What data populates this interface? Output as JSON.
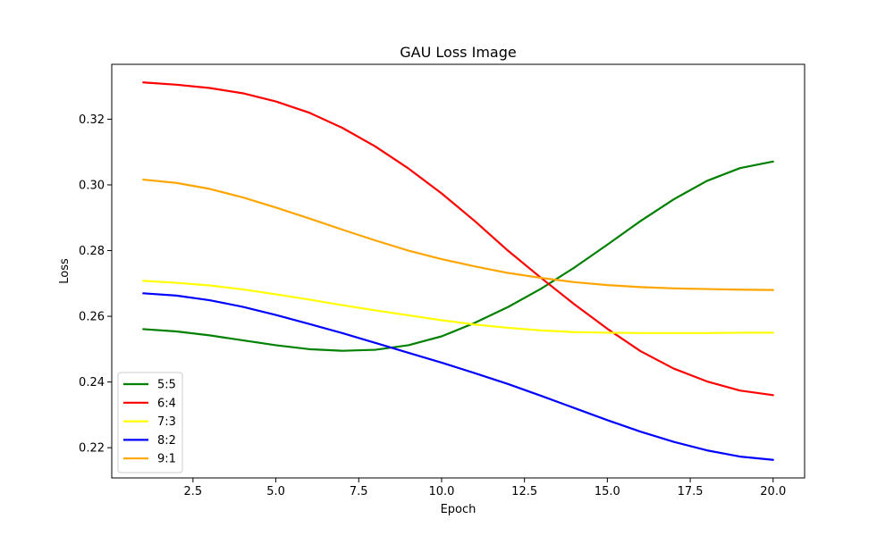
{
  "chart_data": {
    "type": "line",
    "title": "GAU Loss Image",
    "xlabel": "Epoch",
    "ylabel": "Loss",
    "xlim": [
      0.05,
      20.95
    ],
    "ylim": [
      0.2108,
      0.3367
    ],
    "xticks": [
      2.5,
      5.0,
      7.5,
      10.0,
      12.5,
      15.0,
      17.5,
      20.0
    ],
    "xtick_labels": [
      "2.5",
      "5.0",
      "7.5",
      "10.0",
      "12.5",
      "15.0",
      "17.5",
      "20.0"
    ],
    "yticks": [
      0.22,
      0.24,
      0.26,
      0.28,
      0.3,
      0.32
    ],
    "ytick_labels": [
      "0.22",
      "0.24",
      "0.26",
      "0.28",
      "0.30",
      "0.32"
    ],
    "grid": false,
    "legend_position": "lower-left",
    "x": [
      1,
      2,
      3,
      4,
      5,
      6,
      7,
      8,
      9,
      10,
      11,
      12,
      13,
      14,
      15,
      16,
      17,
      18,
      19,
      20
    ],
    "series": [
      {
        "name": "5:5",
        "color": "#008000",
        "values": [
          0.2561,
          0.2554,
          0.2542,
          0.2527,
          0.2512,
          0.25,
          0.2495,
          0.2498,
          0.2512,
          0.2539,
          0.258,
          0.2628,
          0.2684,
          0.2748,
          0.2818,
          0.289,
          0.2956,
          0.3012,
          0.3051,
          0.3071
        ]
      },
      {
        "name": "6:4",
        "color": "#ff0000",
        "values": [
          0.3312,
          0.3305,
          0.3295,
          0.3279,
          0.3254,
          0.322,
          0.3174,
          0.3117,
          0.305,
          0.2974,
          0.289,
          0.28,
          0.2717,
          0.2637,
          0.2562,
          0.2494,
          0.2441,
          0.2402,
          0.2374,
          0.236
        ]
      },
      {
        "name": "7:3",
        "color": "#ffff00",
        "values": [
          0.2708,
          0.2702,
          0.2694,
          0.2682,
          0.2667,
          0.2651,
          0.2634,
          0.2618,
          0.2603,
          0.2588,
          0.2575,
          0.2565,
          0.2557,
          0.2552,
          0.255,
          0.2549,
          0.2549,
          0.2549,
          0.255,
          0.255
        ]
      },
      {
        "name": "8:2",
        "color": "#0000ff",
        "values": [
          0.267,
          0.2663,
          0.2649,
          0.2629,
          0.2604,
          0.2577,
          0.2549,
          0.2519,
          0.2489,
          0.2459,
          0.2427,
          0.2394,
          0.2358,
          0.2321,
          0.2284,
          0.2249,
          0.2218,
          0.2192,
          0.2173,
          0.2163
        ]
      },
      {
        "name": "9:1",
        "color": "#ffa500",
        "values": [
          0.3016,
          0.3006,
          0.2988,
          0.2962,
          0.2931,
          0.2898,
          0.2864,
          0.2831,
          0.28,
          0.2774,
          0.2752,
          0.2732,
          0.2717,
          0.2704,
          0.2695,
          0.2689,
          0.2685,
          0.2683,
          0.2681,
          0.268
        ]
      }
    ]
  }
}
